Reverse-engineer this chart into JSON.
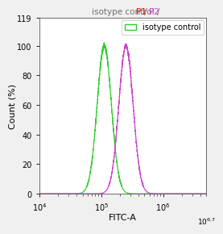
{
  "title_parts": [
    "isotype control / ",
    "P1",
    " / ",
    "P2"
  ],
  "title_colors": [
    "#707070",
    "#ff0000",
    "#707070",
    "#cc44cc"
  ],
  "legend_label": "isotype control",
  "legend_color": "#33cc33",
  "xlabel": "FITC-A",
  "ylabel": "Count (%)",
  "xlim_log_min": 4,
  "xlim_log_max": 6.7,
  "ylim": [
    0,
    119
  ],
  "yticks": [
    0,
    20,
    40,
    60,
    80,
    100,
    119
  ],
  "green_peak_log": 5.05,
  "green_sigma_log": 0.115,
  "magenta_peak_log": 5.4,
  "magenta_sigma_log": 0.115,
  "green_color": "#33cc33",
  "magenta_color": "#cc44cc",
  "background_color": "#f0f0f0",
  "axes_background": "#ffffff",
  "title_fontsize": 7.5,
  "axis_label_fontsize": 8,
  "tick_fontsize": 7
}
